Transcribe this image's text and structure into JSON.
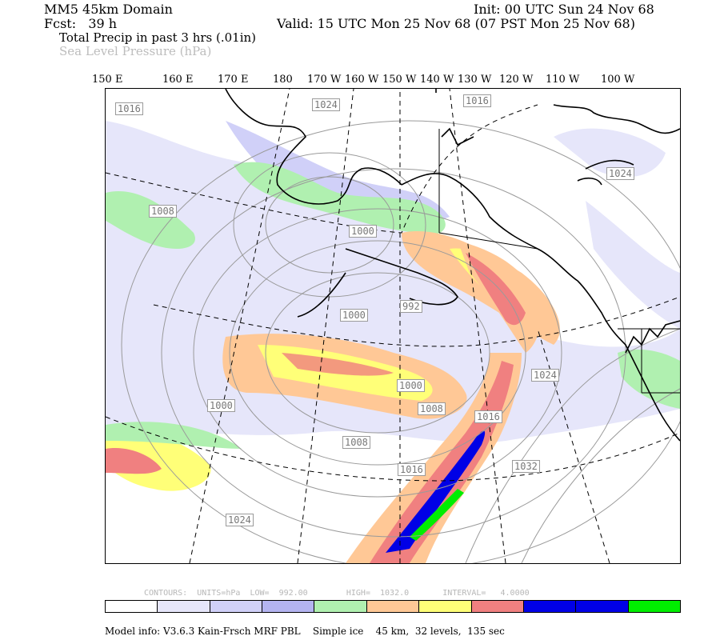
{
  "header": {
    "domain": "MM5 45km Domain",
    "init": "Init: 00 UTC Sun 24 Nov 68",
    "fcst": "Fcst:   39 h",
    "valid": "Valid: 15 UTC Mon 25 Nov 68 (07 PST Mon 25 Nov 68)",
    "field1": "Total Precip in past 3 hrs (.01in)",
    "field2": "Sea Level Pressure (hPa)"
  },
  "longitude_labels": [
    "150 E",
    "160 E",
    "170 E",
    "180",
    "170 W",
    "160 W",
    "150 W",
    "140 W",
    "130 W",
    "120 W",
    "110 W",
    "100 W"
  ],
  "isobar_labels": [
    "1016",
    "1024",
    "1016",
    "1024",
    "1008",
    "1000",
    "1000",
    "992",
    "1024",
    "1000",
    "1008",
    "1000",
    "1016",
    "1008",
    "1016",
    "1032",
    "1024"
  ],
  "contour_info": "CONTOURS:  UNITS=hPa  LOW=  992.00        HIGH=  1032.0       INTERVAL=   4.0000",
  "colorbar": {
    "colors": [
      "#ffffff",
      "#e6e6fa",
      "#d0d0f8",
      "#b4b4f0",
      "#b0f0b0",
      "#ffc896",
      "#ffff78",
      "#f08080",
      "#0000e6",
      "#0000e6",
      "#00ee00"
    ]
  },
  "footer": "Model info: V3.6.3 Kain-Frsch MRF PBL    Simple ice    45 km,  32 levels,  135 sec",
  "colors": {
    "coast": "#000000",
    "isobar": "#9a9a9a",
    "latlon": "#000000"
  }
}
